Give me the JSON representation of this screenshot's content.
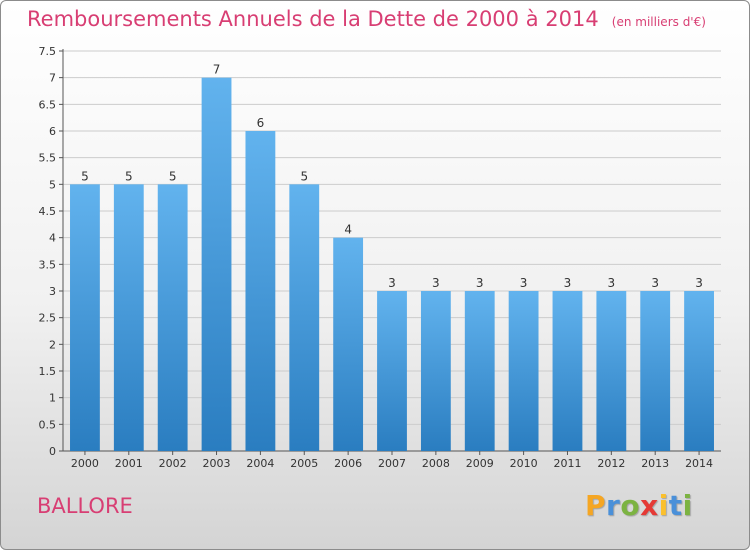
{
  "title": "Remboursements Annuels de la Dette de 2000 à 2014",
  "unit_label": "(en milliers d'€)",
  "commune": "BALLORE",
  "logo": {
    "letters": [
      "P",
      "r",
      "o",
      "x",
      "i",
      "t",
      "i"
    ],
    "colors": [
      "#f5a623",
      "#4a90d9",
      "#7cb342",
      "#e53935",
      "#fbc02d",
      "#4a90d9",
      "#7cb342"
    ]
  },
  "colors": {
    "title": "#d83e73",
    "bar_top": "#62b3ee",
    "bar_bottom": "#2a7dc0",
    "grid": "#cccccc"
  },
  "chart_data": {
    "type": "bar",
    "title": "Remboursements Annuels de la Dette de 2000 à 2014",
    "ylabel": "(en milliers d'€)",
    "categories": [
      "2000",
      "2001",
      "2002",
      "2003",
      "2004",
      "2005",
      "2006",
      "2007",
      "2008",
      "2009",
      "2010",
      "2011",
      "2012",
      "2013",
      "2014"
    ],
    "values": [
      5,
      5,
      5,
      7,
      6,
      5,
      4,
      3,
      3,
      3,
      3,
      3,
      3,
      3,
      3
    ],
    "data_labels": [
      "5",
      "5",
      "5",
      "7",
      "6",
      "5",
      "4",
      "3",
      "3",
      "3",
      "3",
      "3",
      "3",
      "3",
      "3"
    ],
    "ylim": [
      0,
      7.5
    ],
    "yticks": [
      0,
      0.5,
      1,
      1.5,
      2,
      2.5,
      3,
      3.5,
      4,
      4.5,
      5,
      5.5,
      6,
      6.5,
      7,
      7.5
    ],
    "ytick_labels": [
      "0",
      "0.5",
      "1",
      "1.5",
      "2",
      "2.5",
      "3",
      "3.5",
      "4",
      "4.5",
      "5",
      "5.5",
      "6",
      "6.5",
      "7",
      "7.5"
    ],
    "grid": true
  }
}
